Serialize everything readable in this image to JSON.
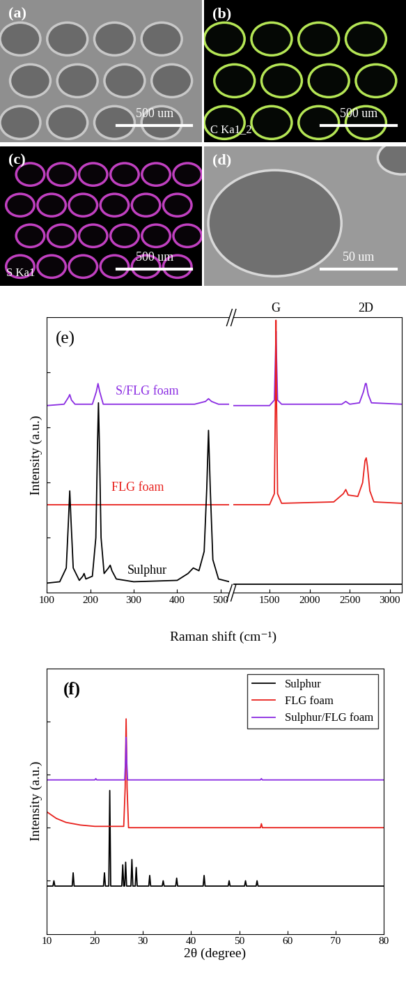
{
  "images": [
    {
      "panel": "(a)",
      "scale_bar": "500 um"
    },
    {
      "panel": "(b)",
      "element": "C Ka1_2",
      "scale_bar": "500 um"
    },
    {
      "panel": "(c)",
      "element": "S Ka1",
      "scale_bar": "500 um"
    },
    {
      "panel": "(d)",
      "scale_bar": "50 um"
    }
  ],
  "chart_data": [
    {
      "type": "line",
      "panel": "(e)",
      "xlabel": "Raman shift (cm⁻¹)",
      "ylabel": "Intensity (a.u.)",
      "tick_labels": "x",
      "ylim": [
        0,
        10
      ],
      "yticks": [
        2,
        4,
        6,
        8
      ],
      "segments": [
        {
          "xlim": [
            100,
            520
          ],
          "xticks": [
            100,
            200,
            300,
            400,
            500
          ]
        },
        {
          "xlim": [
            1050,
            3150
          ],
          "xticks": [
            1500,
            2000,
            2500,
            3000
          ]
        }
      ],
      "annotations": [
        {
          "text": "G",
          "x": 1580
        },
        {
          "text": "2D",
          "x": 2700
        }
      ],
      "series": [
        {
          "name": "S/FLG foam",
          "color": "#8a2be2",
          "segments": [
            {
              "x": [
                100,
                140,
                150,
                153,
                157,
                165,
                205,
                214,
                218,
                222,
                230,
                440,
                465,
                472,
                479,
                495,
                520
              ],
              "values": [
                6.8,
                6.85,
                7.1,
                7.2,
                7.0,
                6.85,
                6.85,
                7.3,
                7.6,
                7.3,
                6.85,
                6.85,
                6.95,
                7.05,
                6.95,
                6.85,
                6.85
              ]
            },
            {
              "x": [
                1050,
                1500,
                1560,
                1575,
                1580,
                1585,
                1600,
                1650,
                2400,
                2450,
                2500,
                2620,
                2670,
                2695,
                2705,
                2730,
                2770,
                3150
              ],
              "values": [
                6.8,
                6.8,
                7.0,
                8.8,
                9.5,
                8.8,
                7.0,
                6.85,
                6.85,
                6.95,
                6.85,
                6.9,
                7.3,
                7.6,
                7.6,
                7.2,
                6.9,
                6.85
              ]
            }
          ]
        },
        {
          "name": "FLG foam",
          "color": "#e8201c",
          "segments": [
            {
              "x": [
                100,
                520
              ],
              "values": [
                3.2,
                3.2
              ]
            },
            {
              "x": [
                1050,
                1500,
                1560,
                1575,
                1580,
                1585,
                1600,
                1650,
                2300,
                2420,
                2450,
                2480,
                2600,
                2660,
                2690,
                2705,
                2720,
                2750,
                2800,
                3150
              ],
              "values": [
                3.2,
                3.2,
                3.6,
                7.5,
                9.9,
                7.5,
                3.6,
                3.25,
                3.3,
                3.6,
                3.75,
                3.55,
                3.5,
                4.0,
                4.8,
                4.9,
                4.6,
                3.7,
                3.3,
                3.25
              ]
            }
          ]
        },
        {
          "name": "Sulphur",
          "color": "#000000",
          "segments": [
            {
              "x": [
                100,
                130,
                145,
                150,
                153,
                156,
                161,
                175,
                183,
                186,
                190,
                205,
                213,
                217,
                219,
                221,
                225,
                232,
                242,
                246,
                250,
                260,
                300,
                400,
                425,
                437,
                450,
                462,
                468,
                472,
                476,
                482,
                495,
                520
              ],
              "values": [
                0.35,
                0.4,
                0.9,
                2.6,
                3.7,
                2.6,
                0.9,
                0.45,
                0.6,
                0.7,
                0.5,
                0.6,
                2.0,
                5.5,
                6.9,
                5.5,
                2.0,
                0.7,
                0.9,
                1.0,
                0.8,
                0.5,
                0.4,
                0.45,
                0.7,
                0.9,
                0.8,
                1.5,
                3.8,
                5.9,
                3.8,
                1.2,
                0.5,
                0.4
              ]
            },
            {
              "x": [
                1050,
                3150
              ],
              "values": [
                0.3,
                0.3
              ]
            }
          ]
        }
      ]
    },
    {
      "type": "line",
      "panel": "(f)",
      "xlabel": "2θ (degree)",
      "ylabel": "Intensity (a.u.)",
      "tick_labels": "x",
      "xlim": [
        10,
        80
      ],
      "xticks": [
        10,
        20,
        30,
        40,
        50,
        60,
        70,
        80
      ],
      "ylim": [
        0,
        10
      ],
      "yticks": [
        2,
        4,
        6,
        8
      ],
      "legend": "upper right",
      "series": [
        {
          "name": "Sulphur",
          "color": "#000000",
          "x": [
            10,
            11.3,
            11.5,
            11.7,
            15.3,
            15.5,
            15.7,
            21.8,
            22.0,
            22.2,
            22.9,
            23.1,
            23.3,
            25.6,
            25.8,
            26.0,
            26.2,
            26.4,
            26.6,
            27.5,
            27.7,
            27.9,
            28.4,
            28.6,
            28.8,
            31.2,
            31.4,
            31.6,
            34.0,
            34.2,
            34.4,
            36.8,
            37.0,
            37.2,
            42.5,
            42.7,
            42.9,
            47.7,
            47.9,
            48.1,
            51.1,
            51.3,
            51.5,
            53.5,
            53.7,
            53.9,
            80
          ],
          "values": [
            1.8,
            1.8,
            2.0,
            1.8,
            1.8,
            2.3,
            1.8,
            1.8,
            2.3,
            1.8,
            1.8,
            5.4,
            1.8,
            1.8,
            2.6,
            1.8,
            1.8,
            2.7,
            1.8,
            1.8,
            2.8,
            1.8,
            1.8,
            2.5,
            1.8,
            1.8,
            2.2,
            1.8,
            1.8,
            2.0,
            1.8,
            1.8,
            2.1,
            1.8,
            1.8,
            2.2,
            1.8,
            1.8,
            2.0,
            1.8,
            1.8,
            2.0,
            1.8,
            1.8,
            2.0,
            1.8,
            1.8
          ]
        },
        {
          "name": "FLG foam",
          "color": "#e8201c",
          "x": [
            10,
            12,
            14,
            17,
            20,
            26.0,
            26.3,
            26.5,
            26.7,
            27.0,
            54.4,
            54.6,
            54.8,
            80
          ],
          "values": [
            4.6,
            4.35,
            4.2,
            4.1,
            4.05,
            4.05,
            5.5,
            8.1,
            5.5,
            4.0,
            4.0,
            4.15,
            4.0,
            4.0
          ]
        },
        {
          "name": "Sulphur/FLG foam",
          "color": "#8a2be2",
          "x": [
            10,
            20.0,
            20.2,
            20.4,
            26.2,
            26.4,
            26.5,
            26.6,
            26.8,
            54.4,
            54.6,
            54.8,
            80
          ],
          "values": [
            5.8,
            5.8,
            5.85,
            5.8,
            5.8,
            6.6,
            7.4,
            6.6,
            5.8,
            5.8,
            5.85,
            5.8,
            5.8
          ]
        }
      ]
    }
  ]
}
